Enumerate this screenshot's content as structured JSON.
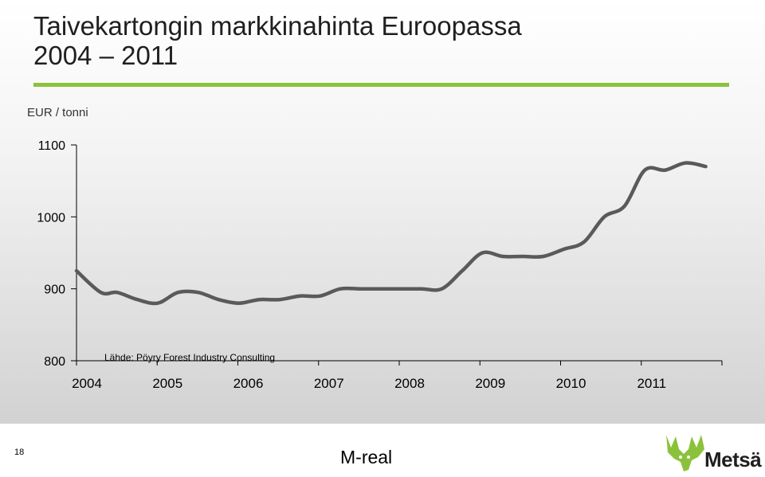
{
  "header": {
    "title_line1": "Taivekartongin markkinahinta Euroopassa",
    "title_line2": "2004 – 2011",
    "accent_color": "#8bc23b"
  },
  "chart_data": {
    "type": "line",
    "title": "Taivekartongin markkinahinta Euroopassa 2004 – 2011",
    "ylabel": "EUR / tonni",
    "xlabel": "",
    "ylim": [
      800,
      1100
    ],
    "yticks": [
      800,
      900,
      1000,
      1100
    ],
    "xlim": [
      2004,
      2011.95
    ],
    "xticks": [
      "2004",
      "2005",
      "2006",
      "2007",
      "2008",
      "2009",
      "2010",
      "2011"
    ],
    "grid": false,
    "line_color": "#5a5a5a",
    "annotation": "Lähde: Pöyry Forest Industry Consulting",
    "series": [
      {
        "x": [
          2004.0,
          2004.3,
          2004.5,
          2004.75,
          2005.0,
          2005.25,
          2005.5,
          2005.75,
          2006.0,
          2006.25,
          2006.5,
          2006.75,
          2007.0,
          2007.25,
          2007.5,
          2007.75,
          2008.0,
          2008.25,
          2008.5,
          2008.75,
          2009.0,
          2009.25,
          2009.5,
          2009.75,
          2010.0,
          2010.25,
          2010.5,
          2010.75,
          2011.0,
          2011.25,
          2011.5,
          2011.75
        ],
        "y": [
          925,
          895,
          895,
          885,
          880,
          895,
          895,
          885,
          880,
          885,
          885,
          890,
          890,
          900,
          900,
          900,
          900,
          900,
          900,
          925,
          950,
          945,
          945,
          945,
          955,
          965,
          1000,
          1015,
          1065,
          1065,
          1075,
          1070
        ]
      }
    ]
  },
  "footer": {
    "page_number": "18",
    "brand": "M-real",
    "logo_text": "Metsä",
    "logo_color": "#8bc23b"
  }
}
